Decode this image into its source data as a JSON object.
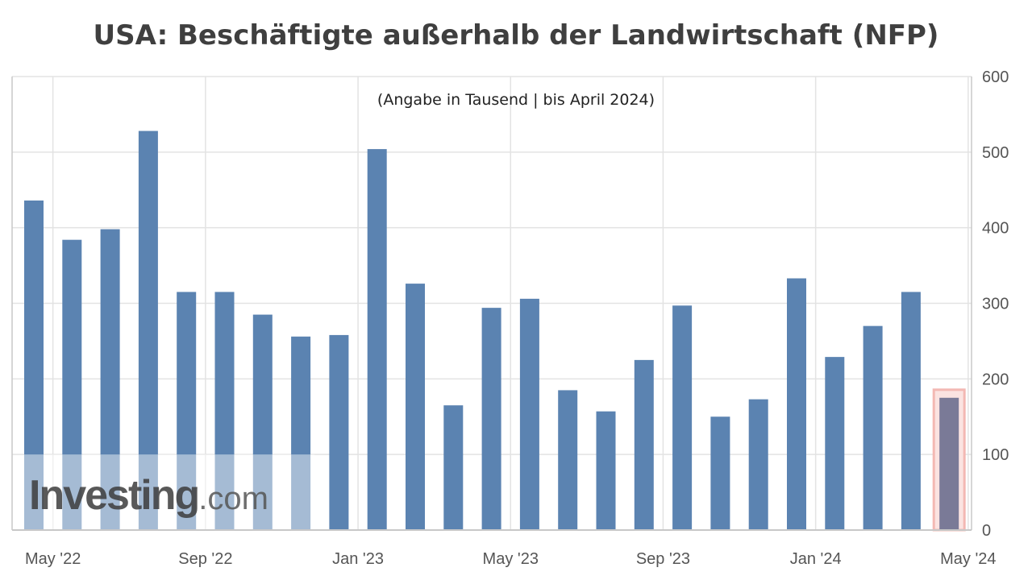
{
  "chart_data": {
    "type": "bar",
    "title": "USA: Beschäftigte außerhalb der Landwirtschaft (NFP)",
    "subtitle": "(Angabe in Tausend | bis April 2024)",
    "categories": [
      "2022-04",
      "2022-05",
      "2022-06",
      "2022-07",
      "2022-08",
      "2022-09",
      "2022-10",
      "2022-11",
      "2022-12",
      "2023-01",
      "2023-02",
      "2023-03",
      "2023-04",
      "2023-05",
      "2023-06",
      "2023-07",
      "2023-08",
      "2023-09",
      "2023-10",
      "2023-11",
      "2023-12",
      "2024-01",
      "2024-02",
      "2024-03",
      "2024-04"
    ],
    "values": [
      436,
      384,
      398,
      528,
      315,
      315,
      285,
      256,
      258,
      504,
      326,
      165,
      294,
      306,
      185,
      157,
      225,
      297,
      150,
      173,
      333,
      229,
      270,
      315,
      175
    ],
    "highlighted_category": "2024-04",
    "x_tick_labels": [
      "May '22",
      "Sep '22",
      "Jan '23",
      "May '23",
      "Sep '23",
      "Jan '24",
      "May '24"
    ],
    "y_ticks": [
      0,
      100,
      200,
      300,
      400,
      500,
      600
    ],
    "ylim": [
      0,
      600
    ],
    "y_axis_position": "right",
    "grid": true,
    "colors": {
      "bar": "#5b83b1",
      "highlight_bar": "#7a7a97",
      "highlight_box": "#f3b8b3",
      "grid": "#e3e3e3"
    }
  },
  "watermark": {
    "main": "Investing",
    "domain": ".com"
  }
}
